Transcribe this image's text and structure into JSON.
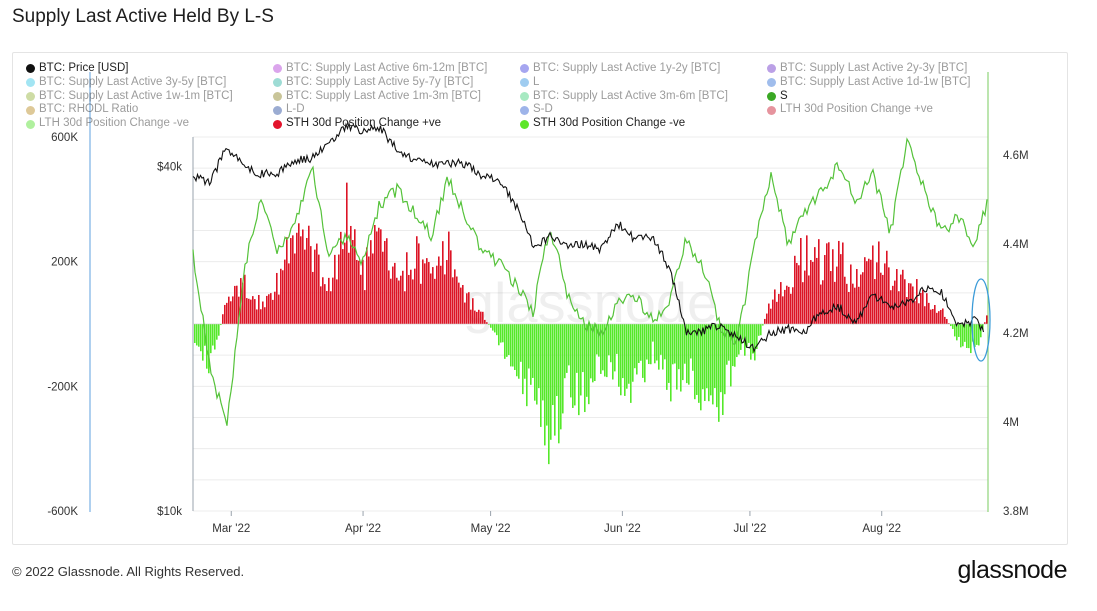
{
  "title": "Supply Last Active Held By L-S",
  "footer": {
    "copyright": "© 2022 Glassnode. All Rights Reserved.",
    "logo": "glassnode"
  },
  "watermark": "glassnode",
  "legend": [
    {
      "label": "BTC: Price [USD]",
      "color": "#111111",
      "active": true
    },
    {
      "label": "BTC: Supply Last Active 6m-12m [BTC]",
      "color": "#b03ad6",
      "active": false
    },
    {
      "label": "BTC: Supply Last Active 1y-2y [BTC]",
      "color": "#3b3bdf",
      "active": false
    },
    {
      "label": "BTC: Supply Last Active 2y-3y [BTC]",
      "color": "#6a2fc8",
      "active": false
    },
    {
      "label": "BTC: Supply Last Active 3y-5y [BTC]",
      "color": "#35c7e6",
      "active": false
    },
    {
      "label": "BTC: Supply Last Active 5y-7y [BTC]",
      "color": "#2bb3a3",
      "active": false
    },
    {
      "label": "L",
      "color": "#2c90e0",
      "active": false
    },
    {
      "label": "BTC: Supply Last Active 1d-1w [BTC]",
      "color": "#2f6fd6",
      "active": false
    },
    {
      "label": "BTC: Supply Last Active 1w-1m [BTC]",
      "color": "#93b23a",
      "active": false
    },
    {
      "label": "BTC: Supply Last Active 1m-3m [BTC]",
      "color": "#8a7f1e",
      "active": false
    },
    {
      "label": "BTC: Supply Last Active 3m-6m [BTC]",
      "color": "#3ecf7a",
      "active": false
    },
    {
      "label": "S",
      "color": "#3aa824",
      "active": true
    },
    {
      "label": "BTC: RHODL Ratio",
      "color": "#b8891c",
      "active": false
    },
    {
      "label": "L-D",
      "color": "#24489c",
      "active": false
    },
    {
      "label": "S-D",
      "color": "#2a5ad0",
      "active": false
    },
    {
      "label": "LTH 30d Position Change +ve",
      "color": "#c8142a",
      "active": false
    },
    {
      "label": "LTH 30d Position Change -ve",
      "color": "#52e02a",
      "active": false
    },
    {
      "label": "STH 30d Position Change +ve",
      "color": "#e3142c",
      "active": true
    },
    {
      "label": "STH 30d Position Change -ve",
      "color": "#5ee62a",
      "active": true
    }
  ],
  "chart_data": {
    "type": "bar",
    "x_tick_labels": [
      "Mar '22",
      "Apr '22",
      "May '22",
      "Jun '22",
      "Jul '22",
      "Aug '22"
    ],
    "x_range": [
      "2022-02-20",
      "2022-08-26"
    ],
    "left_axis": {
      "ticks": [
        "600K",
        "200K",
        "-200K",
        "-600K"
      ],
      "tick_values": [
        600000,
        200000,
        -200000,
        -600000
      ],
      "range": [
        -600000,
        600000
      ]
    },
    "price_axis": {
      "ticks": [
        "$40k",
        "$10k"
      ],
      "scale": "log",
      "range": [
        10000,
        45000
      ]
    },
    "right_axis": {
      "ticks": [
        "4.6M",
        "4.4M",
        "4.2M",
        "4M",
        "3.8M"
      ],
      "tick_values": [
        4600000,
        4400000,
        4200000,
        4000000,
        3800000
      ],
      "range": [
        3800000,
        4640000
      ]
    },
    "colors": {
      "price": "#111111",
      "s": "#55c23a",
      "pos": "#dc1426",
      "neg": "#55e82a",
      "grid": "#ececec",
      "axis_left": "#7ab0e4",
      "axis_right": "#8fd47a",
      "highlight": "#3b9bd8"
    },
    "series": [
      {
        "name": "STH 30d Position Change +ve / -ve",
        "axis": "left",
        "x": [
          "2022-02-20",
          "2022-02-24",
          "2022-02-28",
          "2022-03-04",
          "2022-03-08",
          "2022-03-12",
          "2022-03-16",
          "2022-03-20",
          "2022-03-24",
          "2022-03-28",
          "2022-04-01",
          "2022-04-05",
          "2022-04-09",
          "2022-04-13",
          "2022-04-17",
          "2022-04-21",
          "2022-04-25",
          "2022-04-29",
          "2022-05-03",
          "2022-05-07",
          "2022-05-11",
          "2022-05-15",
          "2022-05-19",
          "2022-05-23",
          "2022-05-27",
          "2022-05-31",
          "2022-06-04",
          "2022-06-08",
          "2022-06-12",
          "2022-06-16",
          "2022-06-20",
          "2022-06-24",
          "2022-06-28",
          "2022-07-02",
          "2022-07-06",
          "2022-07-10",
          "2022-07-14",
          "2022-07-18",
          "2022-07-22",
          "2022-07-26",
          "2022-07-30",
          "2022-08-03",
          "2022-08-07",
          "2022-08-11",
          "2022-08-15",
          "2022-08-19",
          "2022-08-23",
          "2022-08-26"
        ],
        "values": [
          -60000,
          -180000,
          120000,
          160000,
          80000,
          200000,
          400000,
          300000,
          160000,
          460000,
          220000,
          380000,
          160000,
          300000,
          200000,
          320000,
          120000,
          40000,
          -90000,
          -180000,
          -360000,
          -480000,
          -280000,
          -330000,
          -160000,
          -220000,
          -300000,
          -120000,
          -260000,
          -210000,
          -300000,
          -360000,
          -100000,
          -120000,
          120000,
          200000,
          320000,
          260000,
          280000,
          180000,
          300000,
          220000,
          180000,
          120000,
          60000,
          -80000,
          -110000,
          60000
        ]
      },
      {
        "name": "S",
        "axis": "right",
        "x": [
          "2022-02-20",
          "2022-02-24",
          "2022-02-28",
          "2022-03-04",
          "2022-03-08",
          "2022-03-12",
          "2022-03-16",
          "2022-03-20",
          "2022-03-24",
          "2022-03-28",
          "2022-04-01",
          "2022-04-05",
          "2022-04-09",
          "2022-04-13",
          "2022-04-17",
          "2022-04-21",
          "2022-04-25",
          "2022-04-29",
          "2022-05-03",
          "2022-05-07",
          "2022-05-11",
          "2022-05-15",
          "2022-05-19",
          "2022-05-23",
          "2022-05-27",
          "2022-05-31",
          "2022-06-04",
          "2022-06-08",
          "2022-06-12",
          "2022-06-16",
          "2022-06-20",
          "2022-06-24",
          "2022-06-28",
          "2022-07-02",
          "2022-07-06",
          "2022-07-10",
          "2022-07-14",
          "2022-07-18",
          "2022-07-22",
          "2022-07-26",
          "2022-07-30",
          "2022-08-03",
          "2022-08-07",
          "2022-08-11",
          "2022-08-15",
          "2022-08-19",
          "2022-08-23",
          "2022-08-26"
        ],
        "values": [
          4380000,
          4120000,
          3990000,
          4340000,
          4500000,
          4380000,
          4440000,
          4580000,
          4370000,
          4420000,
          4360000,
          4490000,
          4520000,
          4470000,
          4420000,
          4550000,
          4460000,
          4380000,
          4360000,
          4310000,
          4250000,
          4440000,
          4290000,
          4220000,
          4200000,
          4270000,
          4280000,
          4230000,
          4260000,
          4410000,
          4350000,
          4210000,
          4180000,
          4390000,
          4560000,
          4400000,
          4470000,
          4520000,
          4580000,
          4490000,
          4560000,
          4420000,
          4640000,
          4520000,
          4420000,
          4460000,
          4400000,
          4500000
        ]
      },
      {
        "name": "BTC: Price [USD]",
        "axis": "price",
        "x": [
          "2022-02-20",
          "2022-02-24",
          "2022-02-28",
          "2022-03-04",
          "2022-03-08",
          "2022-03-12",
          "2022-03-16",
          "2022-03-20",
          "2022-03-24",
          "2022-03-28",
          "2022-04-01",
          "2022-04-05",
          "2022-04-09",
          "2022-04-13",
          "2022-04-17",
          "2022-04-21",
          "2022-04-25",
          "2022-04-29",
          "2022-05-03",
          "2022-05-07",
          "2022-05-11",
          "2022-05-15",
          "2022-05-19",
          "2022-05-23",
          "2022-05-27",
          "2022-05-31",
          "2022-06-04",
          "2022-06-08",
          "2022-06-12",
          "2022-06-16",
          "2022-06-20",
          "2022-06-24",
          "2022-06-28",
          "2022-07-02",
          "2022-07-06",
          "2022-07-10",
          "2022-07-14",
          "2022-07-18",
          "2022-07-22",
          "2022-07-26",
          "2022-07-30",
          "2022-08-03",
          "2022-08-07",
          "2022-08-11",
          "2022-08-15",
          "2022-08-19",
          "2022-08-23",
          "2022-08-26"
        ],
        "values": [
          38500,
          37500,
          43200,
          40000,
          38800,
          38900,
          41000,
          41200,
          43900,
          47200,
          46200,
          46600,
          42700,
          41100,
          40400,
          40600,
          40400,
          38600,
          37700,
          34000,
          29000,
          30200,
          29200,
          29200,
          28700,
          31700,
          29800,
          30200,
          26500,
          20400,
          20600,
          21200,
          20100,
          19300,
          20500,
          20800,
          20600,
          22400,
          22700,
          21300,
          23800,
          22800,
          23100,
          24400,
          24100,
          21100,
          21500,
          20300
        ]
      }
    ]
  }
}
